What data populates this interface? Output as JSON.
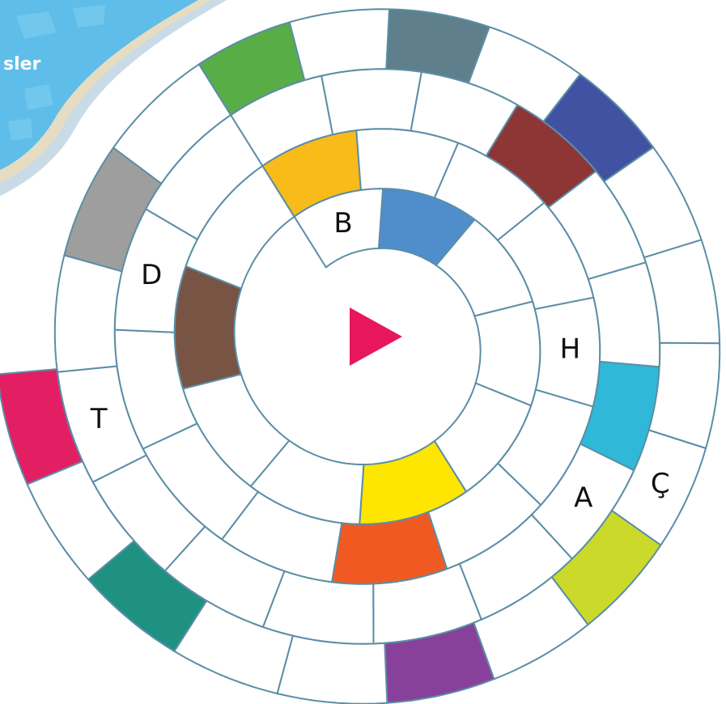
{
  "header": {
    "label": "sler"
  },
  "board": {
    "labels": [
      "B",
      "D",
      "H",
      "T",
      "A",
      "Ç"
    ]
  }
}
